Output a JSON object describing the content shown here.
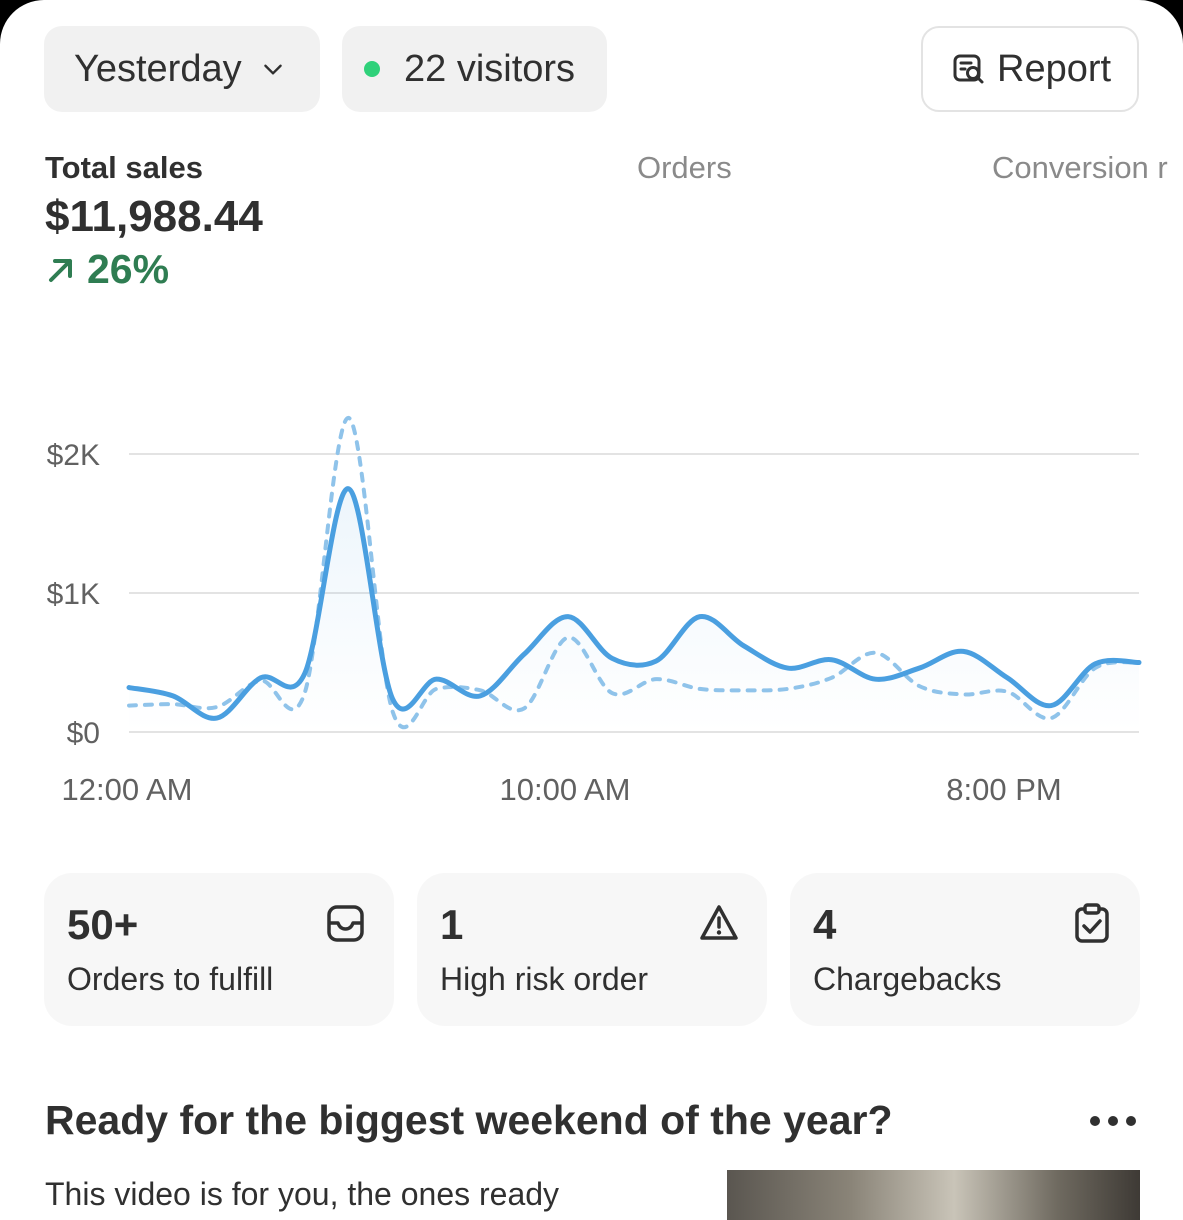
{
  "toolbar": {
    "range_label": "Yesterday",
    "visitors_label": "22 visitors",
    "report_label": "Report"
  },
  "metrics": {
    "tabs": [
      "Total sales",
      "Orders",
      "Conversion r"
    ],
    "total_sales_value": "$11,988.44",
    "total_sales_change": "26%",
    "accent_color": "#2f7d52"
  },
  "chart_data": {
    "type": "line",
    "y_tick_labels": [
      "$2K",
      "$1K",
      "$0"
    ],
    "x_tick_labels": [
      "12:00 AM",
      "10:00 AM",
      "8:00 PM"
    ],
    "ylim": [
      0,
      2000
    ],
    "grid": true,
    "x": [
      "12 AM",
      "1 AM",
      "2 AM",
      "3 AM",
      "4 AM",
      "5 AM",
      "6 AM",
      "7 AM",
      "8 AM",
      "9 AM",
      "10 AM",
      "11 AM",
      "12 PM",
      "1 PM",
      "2 PM",
      "3 PM",
      "4 PM",
      "5 PM",
      "6 PM",
      "7 PM",
      "8 PM",
      "9 PM",
      "10 PM",
      "11 PM"
    ],
    "series": [
      {
        "style": "solid",
        "color": "#4a9fe0",
        "values": [
          320,
          260,
          100,
          390,
          420,
          1750,
          240,
          380,
          260,
          560,
          830,
          530,
          510,
          830,
          620,
          460,
          520,
          380,
          460,
          580,
          390,
          190,
          490,
          500
        ]
      },
      {
        "style": "dashed",
        "color": "#8fc3ea",
        "values": [
          190,
          200,
          180,
          370,
          280,
          2260,
          150,
          310,
          300,
          170,
          680,
          280,
          380,
          310,
          300,
          310,
          390,
          570,
          330,
          270,
          290,
          100,
          460,
          500
        ]
      }
    ]
  },
  "cards": [
    {
      "value": "50+",
      "label": "Orders to fulfill",
      "icon": "inbox-icon"
    },
    {
      "value": "1",
      "label": "High risk order",
      "icon": "alert-triangle-icon"
    },
    {
      "value": "4",
      "label": "Chargebacks",
      "icon": "clipboard-check-icon"
    }
  ],
  "promo": {
    "title": "Ready for the biggest weekend of the year?",
    "body": "This video is for you, the ones ready"
  }
}
